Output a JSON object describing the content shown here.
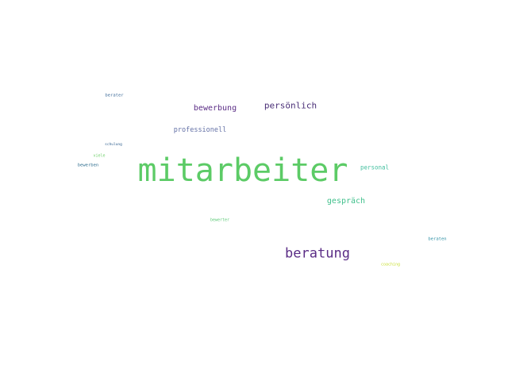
{
  "words": [
    {
      "text": "mitarbeiter",
      "color": "#5ccb66"
    },
    {
      "text": "beratung",
      "color": "#5b2d86"
    },
    {
      "text": "bewerbung",
      "color": "#5b2d86"
    },
    {
      "text": "persönlich",
      "color": "#4a2f77"
    },
    {
      "text": "gespräch",
      "color": "#41c08c"
    },
    {
      "text": "professionell",
      "color": "#6471a6"
    },
    {
      "text": "personal",
      "color": "#45c0a0"
    },
    {
      "text": "berater",
      "color": "#3e6b99"
    },
    {
      "text": "schulung",
      "color": "#2f5f8e"
    },
    {
      "text": "viele",
      "color": "#6fd06a"
    },
    {
      "text": "bewerben",
      "color": "#2d6d8e"
    },
    {
      "text": "bewerter",
      "color": "#58c873"
    },
    {
      "text": "beraten",
      "color": "#2a8ea3"
    },
    {
      "text": "coaching",
      "color": "#c7de2f"
    }
  ]
}
